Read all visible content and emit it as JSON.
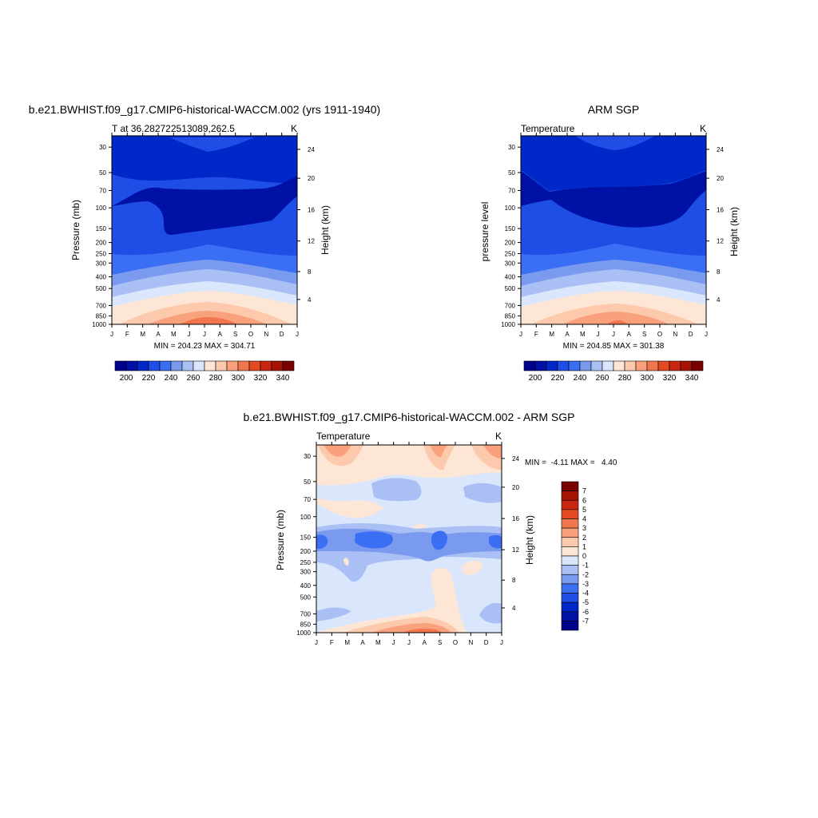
{
  "chart_data": [
    {
      "type": "contour",
      "title": "b.e21.BWHIST.f09_g17.CMIP6-historical-WACCM.002 (yrs 1911-1940)",
      "subtitle_left": "T at 36.282722513089,262.5",
      "subtitle_right": "K",
      "ylabel": "Pressure (mb)",
      "ylabel_right": "Height (km)",
      "months": [
        "J",
        "F",
        "M",
        "A",
        "M",
        "J",
        "J",
        "A",
        "S",
        "O",
        "N",
        "D",
        "J"
      ],
      "pressure_ticks": [
        "30",
        "50",
        "70",
        "100",
        "150",
        "200",
        "250",
        "300",
        "400",
        "500",
        "700",
        "850",
        "1000"
      ],
      "height_ticks": [
        "24",
        "20",
        "16",
        "12",
        "8",
        "4"
      ],
      "stats": "MIN = 204.23 MAX = 304.71",
      "colorbar": {
        "orientation": "horizontal",
        "labels": [
          "200",
          "220",
          "240",
          "260",
          "280",
          "300",
          "320",
          "340"
        ],
        "colors": [
          "#00008b",
          "#0012a6",
          "#0028c8",
          "#1f4ee6",
          "#3b6ff3",
          "#7a9af0",
          "#aac0f5",
          "#d9e6fb",
          "#fde6d6",
          "#fcc9ad",
          "#f8a17c",
          "#f1754d",
          "#e34a22",
          "#c8260f",
          "#a51305",
          "#7a0000"
        ]
      },
      "levels": [
        {
          "name": "<210",
          "color": "#0012a6"
        },
        {
          "name": "210-220",
          "color": "#0028c8"
        },
        {
          "name": "220-230",
          "color": "#1f4ee6"
        },
        {
          "name": "230-240",
          "color": "#3b6ff3"
        },
        {
          "name": "240-250",
          "color": "#7a9af0"
        },
        {
          "name": "250-260",
          "color": "#aac0f5"
        },
        {
          "name": "260-270",
          "color": "#d9e6fb"
        },
        {
          "name": "270-280",
          "color": "#fde6d6"
        },
        {
          "name": "280-290",
          "color": "#fcc9ad"
        },
        {
          "name": "290-300",
          "color": "#f8a17c"
        },
        {
          "name": ">300",
          "color": "#f1754d"
        }
      ]
    },
    {
      "type": "contour",
      "title": "ARM SGP",
      "subtitle_left": "Temperature",
      "subtitle_right": "K",
      "ylabel": "pressure level",
      "ylabel_right": "Height (km)",
      "months": [
        "J",
        "F",
        "M",
        "A",
        "M",
        "J",
        "J",
        "A",
        "S",
        "O",
        "N",
        "D",
        "J"
      ],
      "pressure_ticks": [
        "30",
        "50",
        "70",
        "100",
        "150",
        "200",
        "250",
        "300",
        "400",
        "500",
        "700",
        "850",
        "1000"
      ],
      "height_ticks": [
        "24",
        "20",
        "16",
        "12",
        "8",
        "4"
      ],
      "stats": "MIN = 204.85 MAX = 301.38",
      "colorbar": {
        "orientation": "horizontal",
        "labels": [
          "200",
          "220",
          "240",
          "260",
          "280",
          "300",
          "320",
          "340"
        ]
      }
    },
    {
      "type": "contour",
      "title": "b.e21.BWHIST.f09_g17.CMIP6-historical-WACCM.002 - ARM SGP",
      "subtitle_left": "Temperature",
      "subtitle_right": "K",
      "ylabel": "Pressure (mb)",
      "ylabel_right": "Height (km)",
      "months": [
        "J",
        "F",
        "M",
        "A",
        "M",
        "J",
        "J",
        "A",
        "S",
        "O",
        "N",
        "D",
        "J"
      ],
      "pressure_ticks": [
        "30",
        "50",
        "70",
        "100",
        "150",
        "200",
        "250",
        "300",
        "400",
        "500",
        "700",
        "850",
        "1000"
      ],
      "height_ticks": [
        "24",
        "20",
        "16",
        "12",
        "8",
        "4"
      ],
      "stats": "MIN =  -4.11 MAX =   4.40",
      "colorbar": {
        "orientation": "vertical",
        "labels": [
          "7",
          "6",
          "5",
          "4",
          "3",
          "2",
          "1",
          "0",
          "-1",
          "-2",
          "-3",
          "-4",
          "-5",
          "-6",
          "-7"
        ],
        "colors": [
          "#7a0000",
          "#a51305",
          "#c8260f",
          "#e34a22",
          "#f1754d",
          "#f8a17c",
          "#fcc9ad",
          "#fde6d6",
          "#d9e6fb",
          "#aac0f5",
          "#7a9af0",
          "#3b6ff3",
          "#1f4ee6",
          "#0028c8",
          "#0012a6",
          "#00008b"
        ]
      }
    }
  ]
}
